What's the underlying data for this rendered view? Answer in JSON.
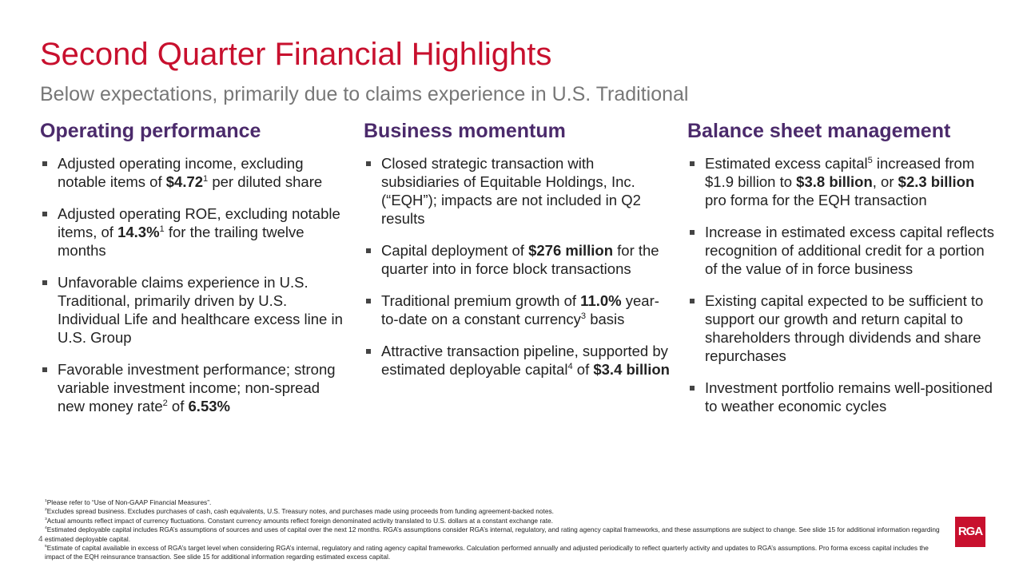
{
  "header": {
    "title": "Second Quarter Financial Highlights",
    "subtitle": "Below expectations, primarily due to claims experience in U.S. Traditional"
  },
  "columns": [
    {
      "heading": "Operating performance",
      "bullets": [
        [
          "Adjusted operating income, excluding notable items of ",
          {
            "b": "$4.72"
          },
          {
            "sup": "1"
          },
          " per diluted share"
        ],
        [
          "Adjusted operating ROE, excluding notable items, of ",
          {
            "b": "14.3%"
          },
          {
            "sup": "1"
          },
          " for the trailing twelve months"
        ],
        [
          "Unfavorable claims experience in U.S. Traditional, primarily driven by U.S. Individual Life and healthcare excess line in U.S. Group"
        ],
        [
          "Favorable investment performance; strong variable investment income; non-spread new money rate",
          {
            "sup": "2"
          },
          " of ",
          {
            "b": "6.53%"
          }
        ]
      ]
    },
    {
      "heading": "Business momentum",
      "bullets": [
        [
          "Closed strategic transaction with subsidiaries of Equitable Holdings, Inc. (“EQH”); impacts are not included in Q2 results"
        ],
        [
          "Capital deployment of ",
          {
            "b": "$276 million"
          },
          " for the quarter into in force block transactions"
        ],
        [
          "Traditional premium growth of ",
          {
            "b": "11.0%"
          },
          " year-to-date on a constant currency",
          {
            "sup": "3"
          },
          " basis"
        ],
        [
          "Attractive transaction pipeline, supported by estimated deployable capital",
          {
            "sup": "4"
          },
          " of ",
          {
            "b": "$3.4 billion"
          }
        ]
      ]
    },
    {
      "heading": "Balance sheet management",
      "bullets": [
        [
          "Estimated excess capital",
          {
            "sup": "5"
          },
          " increased from $1.9 billion to ",
          {
            "b": "$3.8 billion"
          },
          ", or ",
          {
            "b": "$2.3 billion"
          },
          " pro forma for the EQH transaction"
        ],
        [
          "Increase in estimated excess capital reflects recognition of additional credit for a portion of the value of in force business"
        ],
        [
          "Existing capital expected to be sufficient to support our growth and return capital to shareholders through dividends and share repurchases"
        ],
        [
          "Investment portfolio remains well-positioned to weather economic cycles"
        ]
      ]
    }
  ],
  "footnotes": [
    [
      {
        "sup": "1"
      },
      "Please refer to “Use of Non-GAAP Financial Measures”."
    ],
    [
      {
        "sup": "2"
      },
      "Excludes spread business. Excludes purchases of cash, cash equivalents, U.S. Treasury notes, and purchases made using proceeds from funding agreement-backed notes."
    ],
    [
      {
        "sup": "3"
      },
      "Actual amounts reflect impact of currency fluctuations. Constant currency amounts reflect foreign denominated activity translated to U.S. dollars at a constant exchange rate."
    ],
    [
      {
        "sup": "4"
      },
      "Estimated deployable capital includes RGA’s assumptions of sources and uses of capital over the next 12 months. RGA’s assumptions consider RGA’s internal, regulatory, and rating agency capital frameworks, and these assumptions are subject to change. See slide 15 for additional information regarding estimated deployable capital."
    ],
    [
      {
        "sup": "5"
      },
      "Estimate of capital available in excess of RGA’s target level when considering RGA’s internal, regulatory and rating agency capital frameworks. Calculation performed annually and adjusted periodically to reflect quarterly activity and updates to RGA’s assumptions. Pro forma excess capital includes the impact of the EQH reinsurance transaction. See slide 15 for additional information regarding estimated excess capital."
    ]
  ],
  "page_number": "4",
  "logo": "RGA"
}
